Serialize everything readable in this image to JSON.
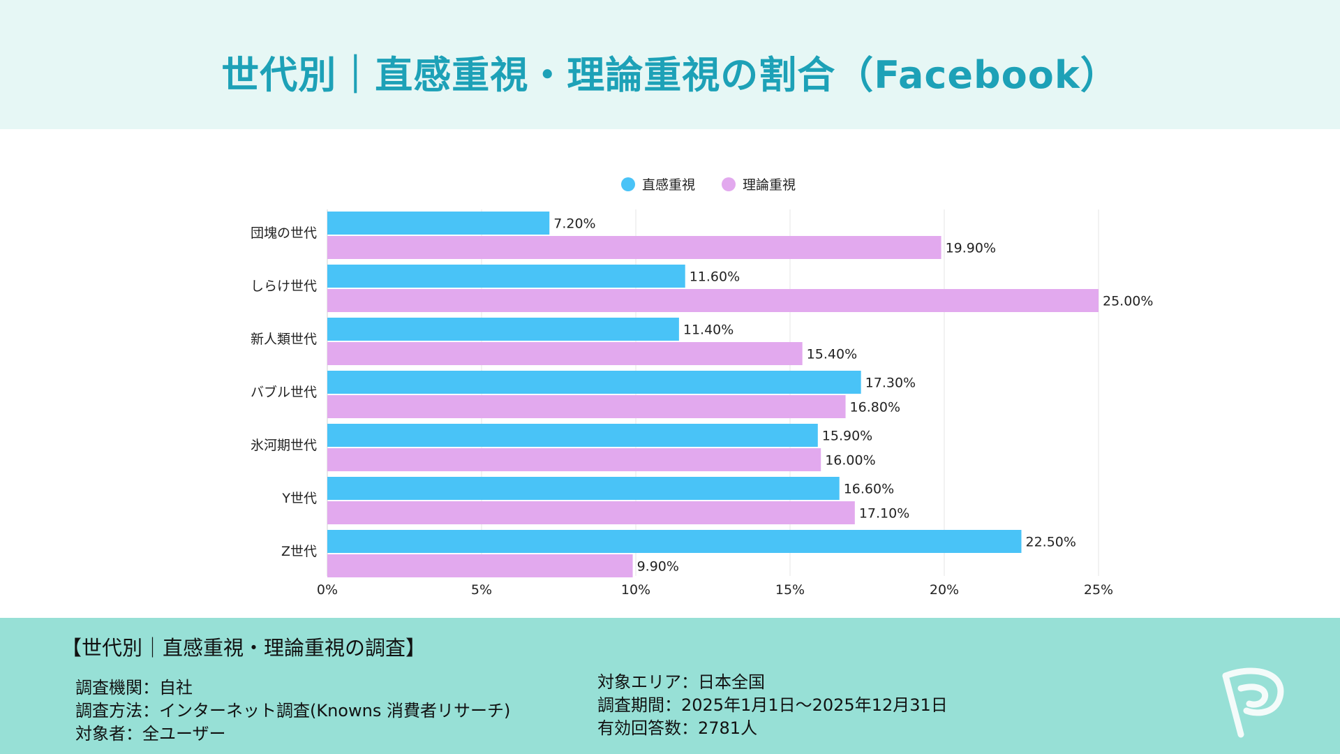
{
  "header": {
    "title": "世代別｜直感重視・理論重視の割合（Facebook）"
  },
  "colors": {
    "intuition": "#49c3f7",
    "logic": "#e2a9ee",
    "header_bg": "#e6f7f5",
    "footer_bg": "#97e0d6",
    "title": "#1da1b7"
  },
  "chart_data": {
    "type": "bar",
    "orientation": "horizontal",
    "categories": [
      "団塊の世代",
      "しらけ世代",
      "新人類世代",
      "バブル世代",
      "氷河期世代",
      "Y世代",
      "Z世代"
    ],
    "series": [
      {
        "name": "直感重視",
        "values": [
          7.2,
          11.6,
          11.4,
          17.3,
          15.9,
          16.6,
          22.5
        ],
        "labels": [
          "7.20%",
          "11.60%",
          "11.40%",
          "17.30%",
          "15.90%",
          "16.60%",
          "22.50%"
        ]
      },
      {
        "name": "理論重視",
        "values": [
          19.9,
          25.0,
          15.4,
          16.8,
          16.0,
          17.1,
          9.9
        ],
        "labels": [
          "19.90%",
          "25.00%",
          "15.40%",
          "16.80%",
          "16.00%",
          "17.10%",
          "9.90%"
        ]
      }
    ],
    "xlim": [
      0,
      25
    ],
    "x_ticks": [
      "0%",
      "5%",
      "10%",
      "15%",
      "20%",
      "25%"
    ],
    "grid": "vertical",
    "legend_position": "top-center"
  },
  "footer": {
    "title": "【世代別｜直感重視・理論重視の調査】",
    "left": [
      "調査機関：自社",
      "調査方法：インターネット調査(Knowns 消費者リサーチ)",
      "対象者：全ユーザー"
    ],
    "right": [
      "対象エリア：日本全国",
      "調査期間：2025年1月1日〜2025年12月31日",
      "有効回答数：2781人"
    ]
  },
  "logo": {
    "icon": "p-logo-icon"
  }
}
